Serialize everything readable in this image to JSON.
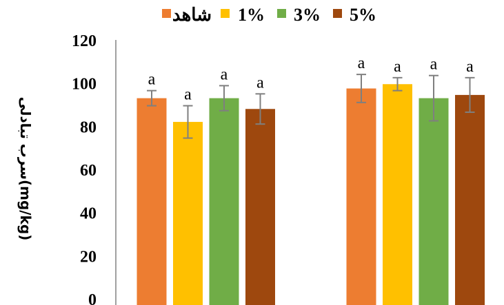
{
  "chart_data": {
    "type": "bar",
    "title": "",
    "xlabel": "",
    "ylabel": "سرب تبادلی(mg/kg)",
    "ylim": [
      0,
      120
    ],
    "yticks": [
      0,
      20,
      40,
      60,
      80,
      100,
      120
    ],
    "legend_position": "top",
    "groups": 2,
    "series": [
      {
        "name": "شاهد",
        "color": "#ED7D31",
        "values": [
          93,
          97.5
        ],
        "errors": [
          3.5,
          6.5
        ],
        "labels": [
          "a",
          "a"
        ]
      },
      {
        "name": "1%",
        "color": "#FFC000",
        "values": [
          82,
          99.5
        ],
        "errors": [
          7.5,
          3
        ],
        "labels": [
          "a",
          "a"
        ]
      },
      {
        "name": "3%",
        "color": "#70AD47",
        "values": [
          93,
          93
        ],
        "errors": [
          5.8,
          10.5
        ],
        "labels": [
          "a",
          "a"
        ]
      },
      {
        "name": "5%",
        "color": "#9E480E",
        "values": [
          88,
          94.5
        ],
        "errors": [
          7,
          8
        ],
        "labels": [
          "a",
          "a"
        ]
      }
    ]
  }
}
